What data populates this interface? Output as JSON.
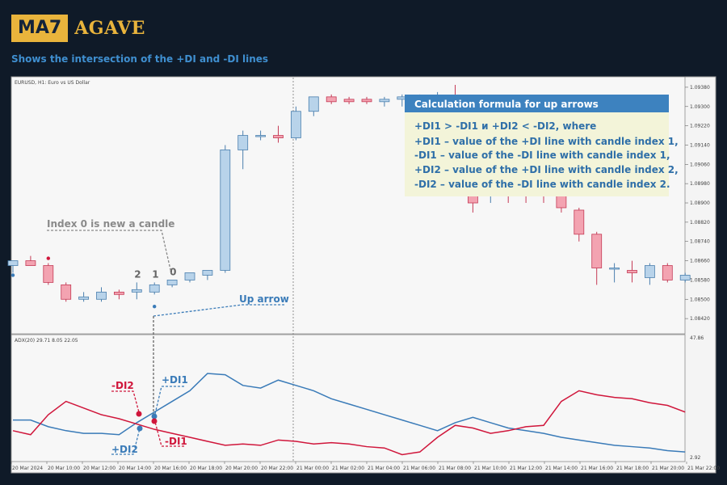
{
  "logo": {
    "box_text": "MA7",
    "name": "AGAVE",
    "accent": "#e9b43c"
  },
  "subtitle": "Shows the intersection of the +DI and -DI lines",
  "chart_data": [
    {
      "type": "candlestick",
      "title": "EURUSD, H1: Euro vs US Dollar",
      "ylim": [
        1.0836,
        1.0942
      ],
      "y_ticks": [
        "1.09380",
        "1.09300",
        "1.09220",
        "1.09140",
        "1.09060",
        "1.08980",
        "1.08900",
        "1.08820",
        "1.08740",
        "1.08660",
        "1.08580",
        "1.08500",
        "1.08420"
      ],
      "colors": {
        "up": "#b8d3ea",
        "down": "#f3a3b1"
      },
      "candles": [
        {
          "o": 1.0864,
          "h": 1.0866,
          "l": 1.0861,
          "c": 1.0866
        },
        {
          "o": 1.0866,
          "h": 1.0868,
          "l": 1.0864,
          "c": 1.0864
        },
        {
          "o": 1.0864,
          "h": 1.0865,
          "l": 1.0856,
          "c": 1.0857
        },
        {
          "o": 1.0856,
          "h": 1.0857,
          "l": 1.0849,
          "c": 1.085
        },
        {
          "o": 1.085,
          "h": 1.0853,
          "l": 1.0849,
          "c": 1.0851
        },
        {
          "o": 1.085,
          "h": 1.0855,
          "l": 1.0849,
          "c": 1.0853
        },
        {
          "o": 1.0853,
          "h": 1.0854,
          "l": 1.085,
          "c": 1.0852
        },
        {
          "o": 1.0853,
          "h": 1.0857,
          "l": 1.085,
          "c": 1.0854
        },
        {
          "o": 1.0853,
          "h": 1.0857,
          "l": 1.0852,
          "c": 1.0856
        },
        {
          "o": 1.0856,
          "h": 1.0858,
          "l": 1.0855,
          "c": 1.0858
        },
        {
          "o": 1.0858,
          "h": 1.0861,
          "l": 1.0857,
          "c": 1.0861
        },
        {
          "o": 1.086,
          "h": 1.0862,
          "l": 1.0858,
          "c": 1.0862
        },
        {
          "o": 1.0862,
          "h": 1.0914,
          "l": 1.0861,
          "c": 1.0912
        },
        {
          "o": 1.0912,
          "h": 1.092,
          "l": 1.0904,
          "c": 1.0918
        },
        {
          "o": 1.0918,
          "h": 1.092,
          "l": 1.0916,
          "c": 1.0918
        },
        {
          "o": 1.0918,
          "h": 1.0922,
          "l": 1.0915,
          "c": 1.0917
        },
        {
          "o": 1.0917,
          "h": 1.093,
          "l": 1.0916,
          "c": 1.0928
        },
        {
          "o": 1.0928,
          "h": 1.0934,
          "l": 1.0926,
          "c": 1.0934
        },
        {
          "o": 1.0934,
          "h": 1.0935,
          "l": 1.0931,
          "c": 1.0932
        },
        {
          "o": 1.0933,
          "h": 1.0934,
          "l": 1.0931,
          "c": 1.0932
        },
        {
          "o": 1.0933,
          "h": 1.0934,
          "l": 1.0931,
          "c": 1.0932
        },
        {
          "o": 1.0932,
          "h": 1.0934,
          "l": 1.093,
          "c": 1.0933
        },
        {
          "o": 1.0933,
          "h": 1.0935,
          "l": 1.093,
          "c": 1.0934
        },
        {
          "o": 1.0933,
          "h": 1.0935,
          "l": 1.093,
          "c": 1.0934
        },
        {
          "o": 1.0933,
          "h": 1.0936,
          "l": 1.093,
          "c": 1.0934
        },
        {
          "o": 1.0934,
          "h": 1.0939,
          "l": 1.093,
          "c": 1.0932
        },
        {
          "o": 1.0898,
          "h": 1.09,
          "l": 1.0886,
          "c": 1.089
        },
        {
          "o": 1.0893,
          "h": 1.0897,
          "l": 1.089,
          "c": 1.0895
        },
        {
          "o": 1.0895,
          "h": 1.0897,
          "l": 1.089,
          "c": 1.0893
        },
        {
          "o": 1.0895,
          "h": 1.0897,
          "l": 1.089,
          "c": 1.0893
        },
        {
          "o": 1.0895,
          "h": 1.0897,
          "l": 1.089,
          "c": 1.0893
        },
        {
          "o": 1.0899,
          "h": 1.09,
          "l": 1.0886,
          "c": 1.0888
        },
        {
          "o": 1.0887,
          "h": 1.0888,
          "l": 1.0874,
          "c": 1.0877
        },
        {
          "o": 1.0877,
          "h": 1.0878,
          "l": 1.0856,
          "c": 1.0863
        },
        {
          "o": 1.0863,
          "h": 1.0865,
          "l": 1.0857,
          "c": 1.0863
        },
        {
          "o": 1.0862,
          "h": 1.0866,
          "l": 1.0857,
          "c": 1.0861
        },
        {
          "o": 1.0859,
          "h": 1.0865,
          "l": 1.0856,
          "c": 1.0864
        },
        {
          "o": 1.0864,
          "h": 1.0865,
          "l": 1.0857,
          "c": 1.0858
        },
        {
          "o": 1.0858,
          "h": 1.0861,
          "l": 1.0857,
          "c": 1.086
        }
      ],
      "markers": [
        {
          "candle": 0,
          "price": 1.086,
          "color": "#3a7bb8"
        },
        {
          "candle": 2,
          "price": 1.0867,
          "color": "#d0163b"
        },
        {
          "candle": 8,
          "price": 1.0847,
          "color": "#3a7bb8"
        }
      ],
      "candle_index_labels": [
        "2",
        "1",
        "0"
      ]
    },
    {
      "type": "line",
      "title": "ADX(20) 29.71 8.05 22.05",
      "ylim": [
        2.92,
        47.86
      ],
      "y_ticks": [
        "47.86",
        "2.92"
      ],
      "x_ticks": [
        "20 Mar 2024",
        "20 Mar 10:00",
        "20 Mar 12:00",
        "20 Mar 14:00",
        "20 Mar 16:00",
        "20 Mar 18:00",
        "20 Mar 20:00",
        "20 Mar 22:00",
        "21 Mar 00:00",
        "21 Mar 02:00",
        "21 Mar 04:00",
        "21 Mar 06:00",
        "21 Mar 08:00",
        "21 Mar 10:00",
        "21 Mar 12:00",
        "21 Mar 14:00",
        "21 Mar 16:00",
        "21 Mar 18:00",
        "21 Mar 20:00",
        "21 Mar 22:00"
      ],
      "series": [
        {
          "name": "+DI",
          "color": "#3a7bb8",
          "values": [
            17.0,
            17.0,
            14.5,
            13.0,
            12.0,
            12.0,
            11.5,
            16.0,
            20.0,
            24.0,
            28.0,
            34.5,
            34.0,
            30.0,
            29.0,
            32.0,
            30.0,
            28.0,
            25.0,
            23.0,
            21.0,
            19.0,
            17.0,
            15.0,
            13.0,
            16.0,
            18.0,
            16.0,
            14.0,
            13.0,
            12.0,
            10.5,
            9.5,
            8.5,
            7.5,
            7.0,
            6.5,
            5.5,
            5.0
          ]
        },
        {
          "name": "-DI",
          "color": "#d0163b",
          "values": [
            13.0,
            11.5,
            19.0,
            24.0,
            21.5,
            19.0,
            17.5,
            15.5,
            13.5,
            12.0,
            10.5,
            9.0,
            7.5,
            8.0,
            7.5,
            9.5,
            9.0,
            8.0,
            8.5,
            8.0,
            7.0,
            6.5,
            4.0,
            5.0,
            10.5,
            15.0,
            14.0,
            12.0,
            13.0,
            14.5,
            15.0,
            24.0,
            28.0,
            26.5,
            25.5,
            25.0,
            23.5,
            22.5,
            20.0
          ]
        }
      ]
    }
  ],
  "annotations": {
    "index0_note": "Index 0 is new a candle",
    "up_arrow": "Up arrow",
    "di2_minus": "-DI2",
    "di1_plus": "+DI1",
    "di2_plus": "+DI2",
    "di1_minus": "-DI1"
  },
  "callout": {
    "title": "Calculation formula for up arrows",
    "lines": [
      "+DI1 > -DI1 и +DI2 < -DI2, where",
      "+DI1 – value of the +DI line with candle index 1,",
      "-DI1 – value of the -DI line with candle index 1,",
      "+DI2 – value of the +DI line with candle index 2,",
      "-DI2 – value of the -DI line with candle index 2."
    ],
    "header_color": "#3d82bf",
    "body_color": "#f3f4d9"
  }
}
